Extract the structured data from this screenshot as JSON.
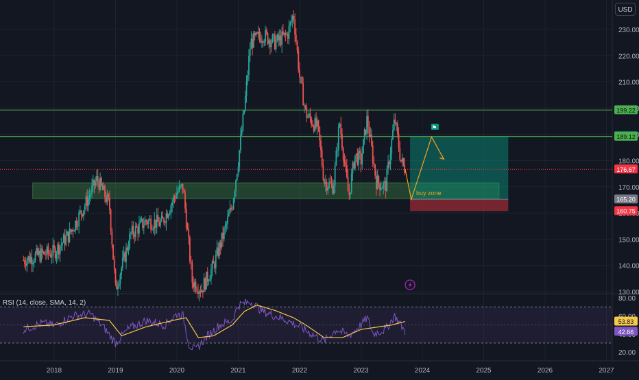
{
  "currency": "USD",
  "chart_data": {
    "type": "candlestick",
    "price_axis": {
      "ticks": [
        230,
        220,
        210,
        200,
        190,
        180,
        170,
        160,
        150,
        140,
        130
      ],
      "range": [
        130,
        236
      ]
    },
    "time_axis": {
      "labels": [
        "2018",
        "2019",
        "2020",
        "2021",
        "2022",
        "2023",
        "2024",
        "2025",
        "2026",
        "2027"
      ]
    },
    "price_path": [
      [
        2017.5,
        142
      ],
      [
        2017.75,
        144
      ],
      [
        2018.0,
        145
      ],
      [
        2018.25,
        152
      ],
      [
        2018.5,
        163
      ],
      [
        2018.7,
        173
      ],
      [
        2018.9,
        163
      ],
      [
        2019.0,
        131
      ],
      [
        2019.25,
        152
      ],
      [
        2019.5,
        157
      ],
      [
        2019.75,
        156
      ],
      [
        2020.0,
        168
      ],
      [
        2020.1,
        170
      ],
      [
        2020.25,
        134
      ],
      [
        2020.4,
        131
      ],
      [
        2020.6,
        140
      ],
      [
        2020.8,
        155
      ],
      [
        2020.9,
        163
      ],
      [
        2021.0,
        180
      ],
      [
        2021.1,
        200
      ],
      [
        2021.2,
        225
      ],
      [
        2021.4,
        228
      ],
      [
        2021.6,
        225
      ],
      [
        2021.8,
        228
      ],
      [
        2021.9,
        236
      ],
      [
        2022.0,
        212
      ],
      [
        2022.1,
        198
      ],
      [
        2022.3,
        192
      ],
      [
        2022.4,
        172
      ],
      [
        2022.55,
        170
      ],
      [
        2022.65,
        195
      ],
      [
        2022.8,
        166
      ],
      [
        2022.9,
        182
      ],
      [
        2023.0,
        180
      ],
      [
        2023.1,
        196
      ],
      [
        2023.25,
        172
      ],
      [
        2023.4,
        170
      ],
      [
        2023.55,
        196
      ],
      [
        2023.65,
        180
      ],
      [
        2023.72,
        176.67
      ]
    ],
    "levels": [
      {
        "value": 199.22,
        "label": "199.22",
        "color": "#4caf50"
      },
      {
        "value": 189.12,
        "label": "189.12",
        "color": "#4caf50"
      },
      {
        "value": 176.67,
        "label": "176.67",
        "color": "#f23645"
      }
    ],
    "position": {
      "entry": 165.2,
      "target": 189.33,
      "stop": 160.75,
      "entry_label": "165.20",
      "target_label": "189.33",
      "stop_label": "160.75",
      "start_date": 2023.8,
      "end_date": 2025.4
    },
    "zone": {
      "low": 165.5,
      "high": 171.5,
      "start_date": 2017.65,
      "end_date": 2025.25,
      "label": "buy zone"
    },
    "projection": [
      [
        2023.72,
        176.67
      ],
      [
        2023.82,
        165.2
      ],
      [
        2024.15,
        189.0
      ],
      [
        2024.35,
        180.5
      ]
    ],
    "rsi": {
      "label": "RSI (14, close, SMA, 14, 2)",
      "value": "42.66",
      "sma_value": "53.83",
      "ticks": [
        80,
        60,
        40,
        20
      ],
      "bands": [
        70,
        30
      ],
      "range": [
        15,
        82
      ],
      "path": [
        [
          2017.5,
          45
        ],
        [
          2017.8,
          52
        ],
        [
          2018.0,
          49
        ],
        [
          2018.3,
          60
        ],
        [
          2018.6,
          62
        ],
        [
          2018.8,
          48
        ],
        [
          2019.0,
          30
        ],
        [
          2019.2,
          45
        ],
        [
          2019.5,
          55
        ],
        [
          2019.8,
          50
        ],
        [
          2020.0,
          62
        ],
        [
          2020.1,
          60
        ],
        [
          2020.2,
          28
        ],
        [
          2020.3,
          22
        ],
        [
          2020.5,
          38
        ],
        [
          2020.7,
          50
        ],
        [
          2020.9,
          55
        ],
        [
          2021.0,
          72
        ],
        [
          2021.2,
          76
        ],
        [
          2021.4,
          65
        ],
        [
          2021.6,
          60
        ],
        [
          2021.8,
          55
        ],
        [
          2022.0,
          48
        ],
        [
          2022.2,
          40
        ],
        [
          2022.4,
          32
        ],
        [
          2022.6,
          45
        ],
        [
          2022.8,
          38
        ],
        [
          2023.0,
          50
        ],
        [
          2023.1,
          58
        ],
        [
          2023.2,
          40
        ],
        [
          2023.4,
          45
        ],
        [
          2023.55,
          60
        ],
        [
          2023.72,
          42.66
        ]
      ],
      "sma": [
        [
          2017.5,
          48
        ],
        [
          2018.0,
          50
        ],
        [
          2018.5,
          58
        ],
        [
          2018.9,
          55
        ],
        [
          2019.1,
          38
        ],
        [
          2019.5,
          48
        ],
        [
          2020.0,
          56
        ],
        [
          2020.15,
          58
        ],
        [
          2020.35,
          36
        ],
        [
          2020.6,
          38
        ],
        [
          2020.9,
          50
        ],
        [
          2021.1,
          65
        ],
        [
          2021.3,
          72
        ],
        [
          2021.6,
          66
        ],
        [
          2021.9,
          58
        ],
        [
          2022.1,
          50
        ],
        [
          2022.4,
          36
        ],
        [
          2022.7,
          36
        ],
        [
          2023.0,
          45
        ],
        [
          2023.3,
          48
        ],
        [
          2023.5,
          50
        ],
        [
          2023.72,
          53.83
        ]
      ]
    }
  }
}
